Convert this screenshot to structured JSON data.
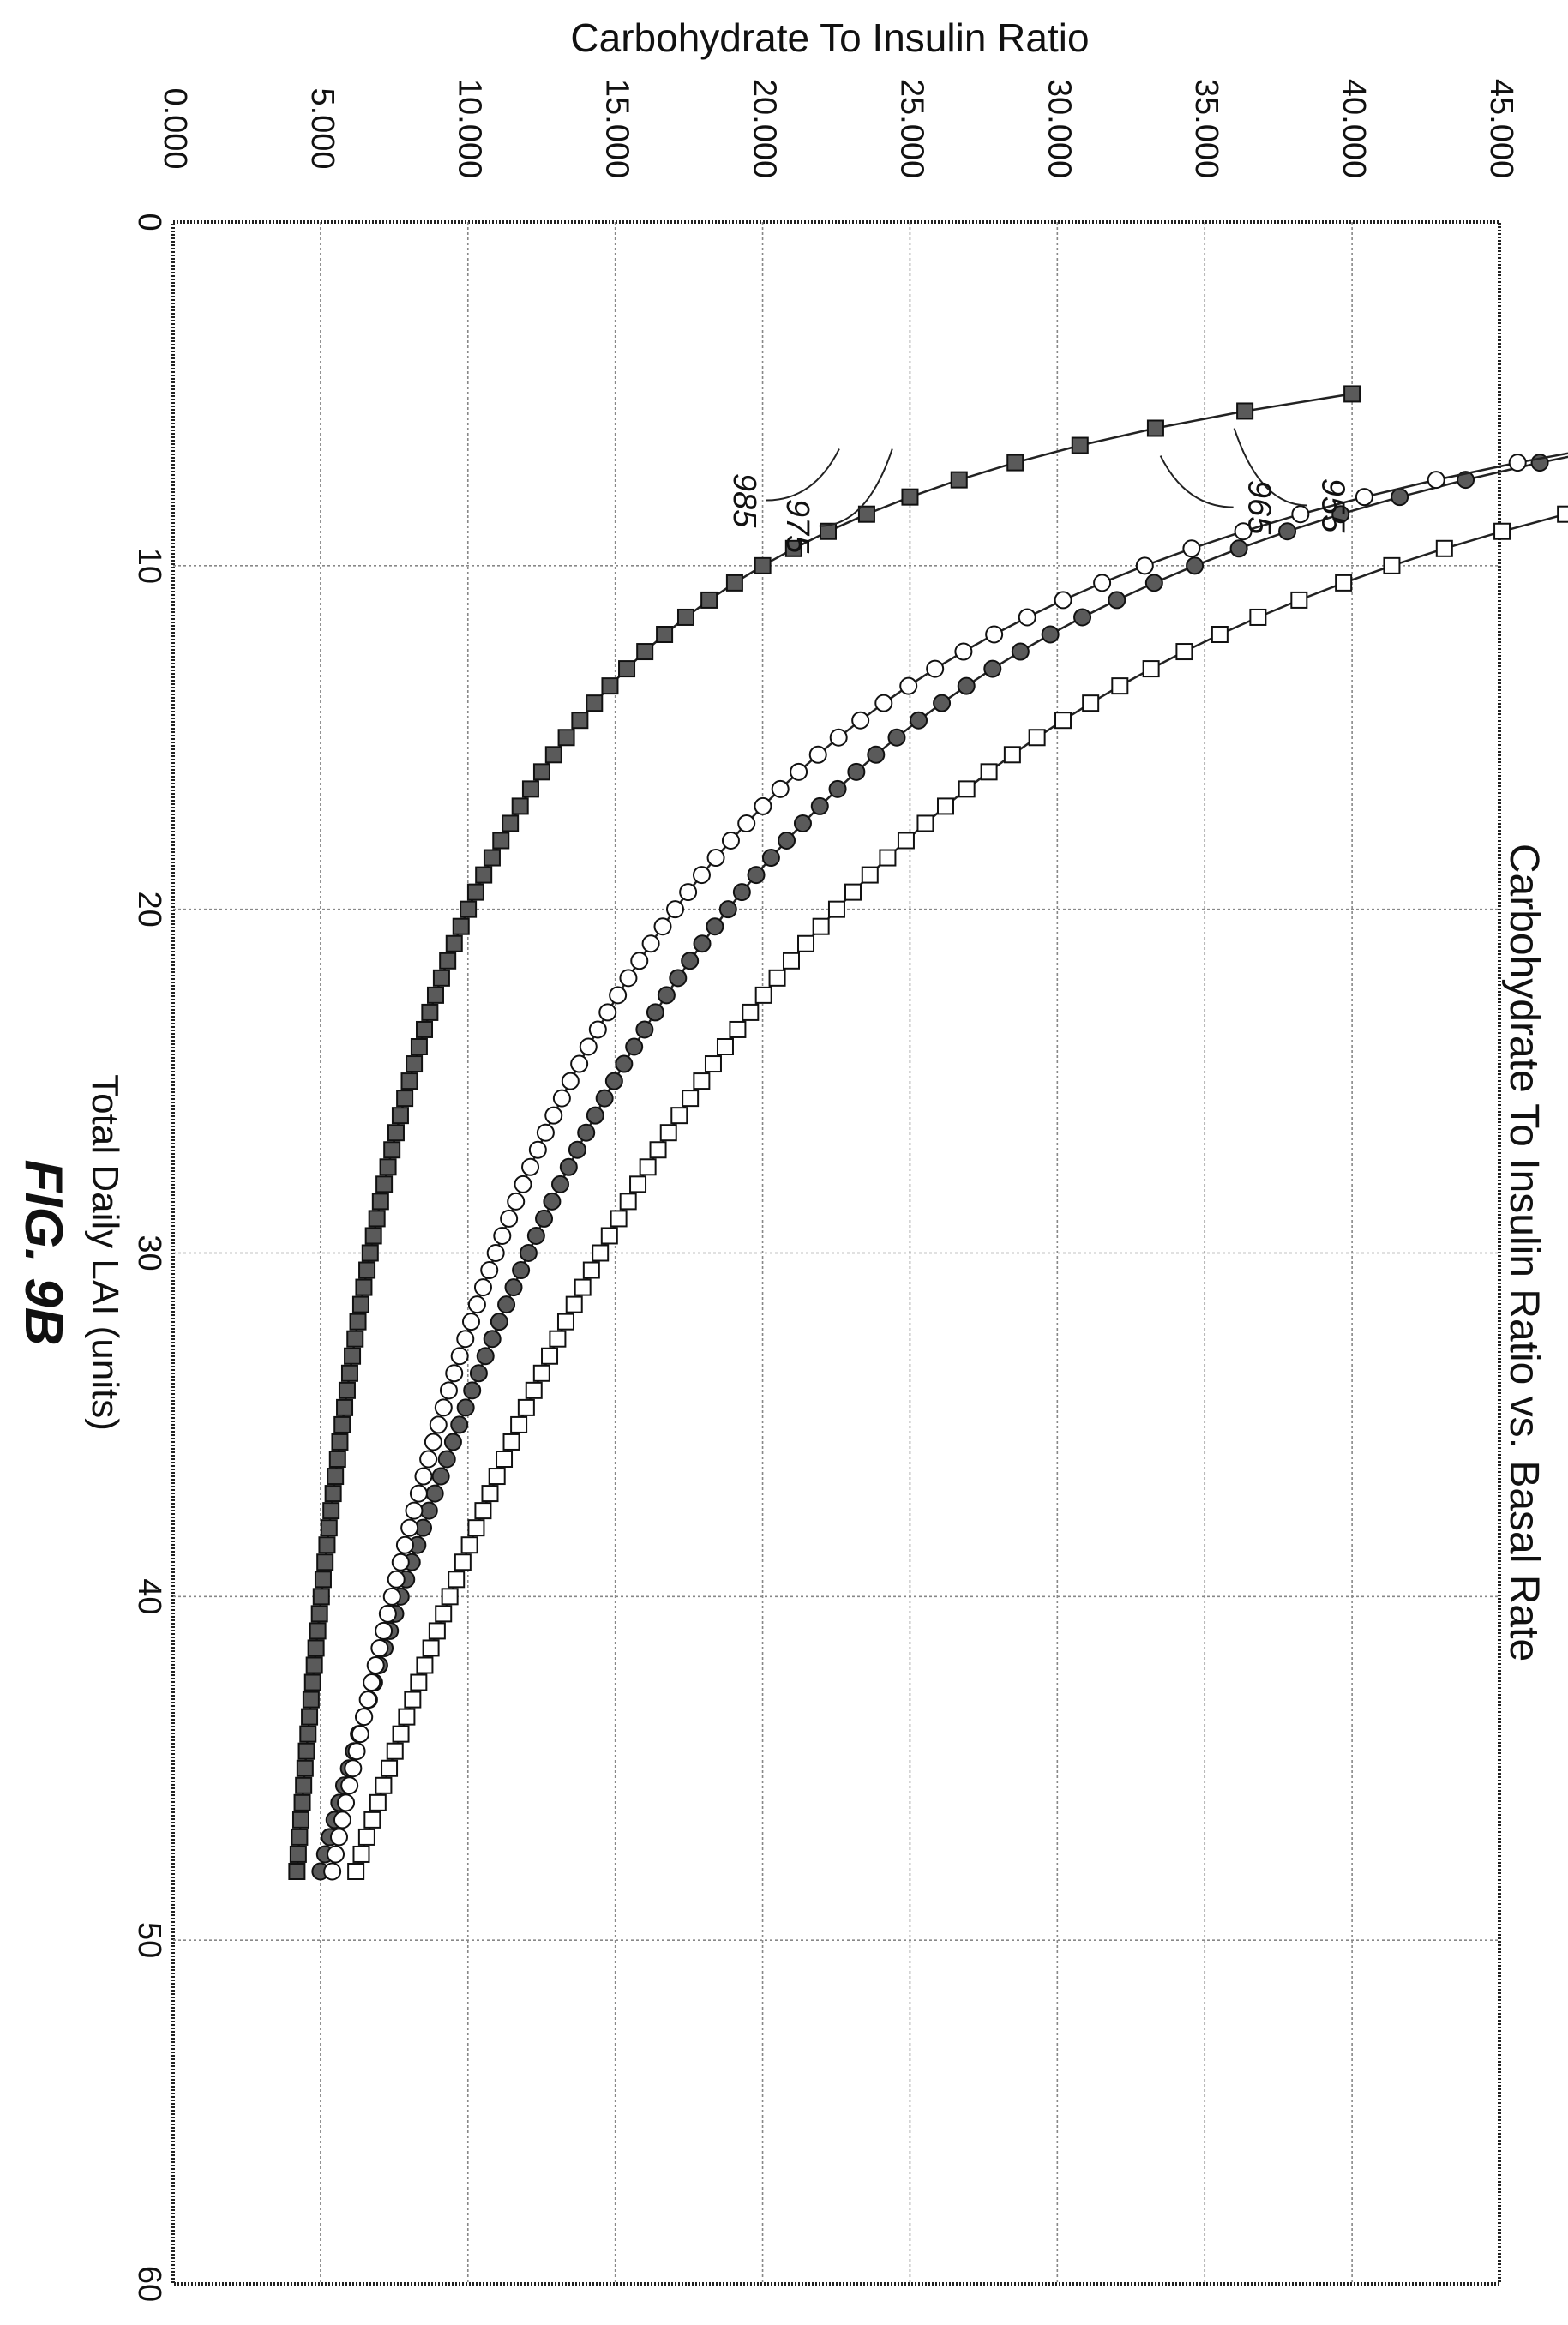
{
  "chart_data": {
    "type": "line",
    "orientation": "rotated-90-clockwise",
    "title": "Carbohydrate To Insulin Ratio vs. Basal Rate",
    "xlabel": "Total Daily LAI (units)",
    "ylabel": "Carbohydrate To Insulin Ratio",
    "caption": "FIG. 9B",
    "xlim": [
      0,
      60
    ],
    "ylim": [
      0,
      45
    ],
    "x_ticks": [
      0,
      10,
      20,
      30,
      40,
      50,
      60
    ],
    "y_ticks": [
      0,
      5,
      10,
      15,
      20,
      25,
      30,
      35,
      40,
      45
    ],
    "x_tick_labels": [
      "0",
      "10",
      "20",
      "30",
      "40",
      "50",
      "60"
    ],
    "y_tick_labels": [
      "0.000",
      "5.000",
      "10.000",
      "15.000",
      "20.000",
      "25.000",
      "30.000",
      "35.000",
      "40.000",
      "45.000"
    ],
    "grid": true,
    "legend": "none",
    "x_range": {
      "start": 5,
      "end": 48,
      "step": 0.5
    },
    "series": [
      {
        "name": "955",
        "marker": "filled-square",
        "k": 200,
        "p": 1,
        "end_value": 4.2
      },
      {
        "name": "965",
        "marker": "open-square",
        "k": 262.58,
        "p": 0.8,
        "end_value": 6.2
      },
      {
        "name": "975",
        "marker": "filled-circle",
        "k": 220.18,
        "p": 0.8,
        "end_value": 5.0
      },
      {
        "name": "985",
        "marker": "open-circle",
        "k": 263.04,
        "p": 0.9,
        "end_value": 5.4
      }
    ],
    "annotations": [
      {
        "label": "955",
        "series": "955",
        "x": 6.0,
        "y": 36.0
      },
      {
        "label": "965",
        "series": "965",
        "x": 6.8,
        "y": 33.5
      },
      {
        "label": "975",
        "series": "975",
        "x": 6.6,
        "y": 24.4
      },
      {
        "label": "985",
        "series": "985",
        "x": 6.6,
        "y": 22.6
      }
    ]
  }
}
